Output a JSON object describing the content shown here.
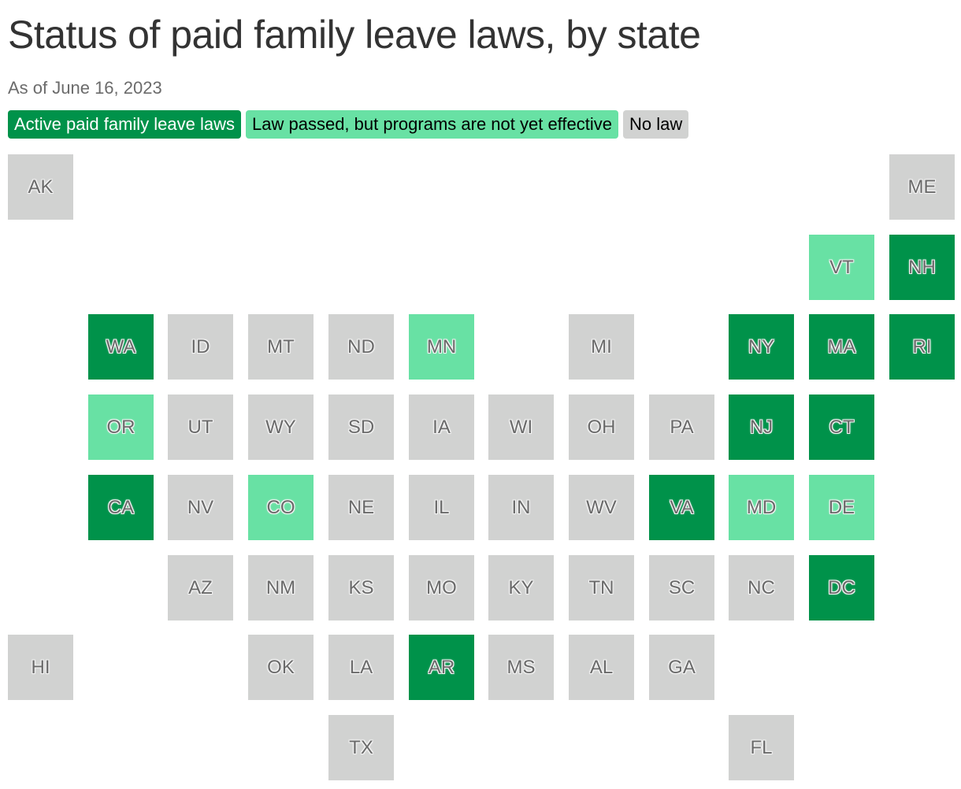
{
  "title": "Status of paid family leave laws, by state",
  "subtitle": "As of June 16, 2023",
  "legend": {
    "active": "Active paid family leave laws",
    "passed": "Law passed, but programs are not yet effective",
    "none": "No law"
  },
  "colors": {
    "active": "#00924a",
    "passed": "#68e1a4",
    "none": "#d1d2d1"
  },
  "states": [
    {
      "abbr": "AK",
      "status": "none",
      "col": 0,
      "row": 0
    },
    {
      "abbr": "ME",
      "status": "none",
      "col": 11,
      "row": 0
    },
    {
      "abbr": "VT",
      "status": "passed",
      "col": 10,
      "row": 1
    },
    {
      "abbr": "NH",
      "status": "active",
      "col": 11,
      "row": 1
    },
    {
      "abbr": "WA",
      "status": "active",
      "col": 1,
      "row": 2
    },
    {
      "abbr": "ID",
      "status": "none",
      "col": 2,
      "row": 2
    },
    {
      "abbr": "MT",
      "status": "none",
      "col": 3,
      "row": 2
    },
    {
      "abbr": "ND",
      "status": "none",
      "col": 4,
      "row": 2
    },
    {
      "abbr": "MN",
      "status": "passed",
      "col": 5,
      "row": 2
    },
    {
      "abbr": "MI",
      "status": "none",
      "col": 7,
      "row": 2
    },
    {
      "abbr": "NY",
      "status": "active",
      "col": 9,
      "row": 2
    },
    {
      "abbr": "MA",
      "status": "active",
      "col": 10,
      "row": 2
    },
    {
      "abbr": "RI",
      "status": "active",
      "col": 11,
      "row": 2
    },
    {
      "abbr": "OR",
      "status": "passed",
      "col": 1,
      "row": 3
    },
    {
      "abbr": "UT",
      "status": "none",
      "col": 2,
      "row": 3
    },
    {
      "abbr": "WY",
      "status": "none",
      "col": 3,
      "row": 3
    },
    {
      "abbr": "SD",
      "status": "none",
      "col": 4,
      "row": 3
    },
    {
      "abbr": "IA",
      "status": "none",
      "col": 5,
      "row": 3
    },
    {
      "abbr": "WI",
      "status": "none",
      "col": 6,
      "row": 3
    },
    {
      "abbr": "OH",
      "status": "none",
      "col": 7,
      "row": 3
    },
    {
      "abbr": "PA",
      "status": "none",
      "col": 8,
      "row": 3
    },
    {
      "abbr": "NJ",
      "status": "active",
      "col": 9,
      "row": 3
    },
    {
      "abbr": "CT",
      "status": "active",
      "col": 10,
      "row": 3
    },
    {
      "abbr": "CA",
      "status": "active",
      "col": 1,
      "row": 4
    },
    {
      "abbr": "NV",
      "status": "none",
      "col": 2,
      "row": 4
    },
    {
      "abbr": "CO",
      "status": "passed",
      "col": 3,
      "row": 4
    },
    {
      "abbr": "NE",
      "status": "none",
      "col": 4,
      "row": 4
    },
    {
      "abbr": "IL",
      "status": "none",
      "col": 5,
      "row": 4
    },
    {
      "abbr": "IN",
      "status": "none",
      "col": 6,
      "row": 4
    },
    {
      "abbr": "WV",
      "status": "none",
      "col": 7,
      "row": 4
    },
    {
      "abbr": "VA",
      "status": "active",
      "col": 8,
      "row": 4
    },
    {
      "abbr": "MD",
      "status": "passed",
      "col": 9,
      "row": 4
    },
    {
      "abbr": "DE",
      "status": "passed",
      "col": 10,
      "row": 4
    },
    {
      "abbr": "AZ",
      "status": "none",
      "col": 2,
      "row": 5
    },
    {
      "abbr": "NM",
      "status": "none",
      "col": 3,
      "row": 5
    },
    {
      "abbr": "KS",
      "status": "none",
      "col": 4,
      "row": 5
    },
    {
      "abbr": "MO",
      "status": "none",
      "col": 5,
      "row": 5
    },
    {
      "abbr": "KY",
      "status": "none",
      "col": 6,
      "row": 5
    },
    {
      "abbr": "TN",
      "status": "none",
      "col": 7,
      "row": 5
    },
    {
      "abbr": "SC",
      "status": "none",
      "col": 8,
      "row": 5
    },
    {
      "abbr": "NC",
      "status": "none",
      "col": 9,
      "row": 5
    },
    {
      "abbr": "DC",
      "status": "active",
      "col": 10,
      "row": 5
    },
    {
      "abbr": "HI",
      "status": "none",
      "col": 0,
      "row": 6
    },
    {
      "abbr": "OK",
      "status": "none",
      "col": 3,
      "row": 6
    },
    {
      "abbr": "LA",
      "status": "none",
      "col": 4,
      "row": 6
    },
    {
      "abbr": "AR",
      "status": "active",
      "col": 5,
      "row": 6
    },
    {
      "abbr": "MS",
      "status": "none",
      "col": 6,
      "row": 6
    },
    {
      "abbr": "AL",
      "status": "none",
      "col": 7,
      "row": 6
    },
    {
      "abbr": "GA",
      "status": "none",
      "col": 8,
      "row": 6
    },
    {
      "abbr": "TX",
      "status": "none",
      "col": 4,
      "row": 7
    },
    {
      "abbr": "FL",
      "status": "none",
      "col": 9,
      "row": 7
    }
  ]
}
